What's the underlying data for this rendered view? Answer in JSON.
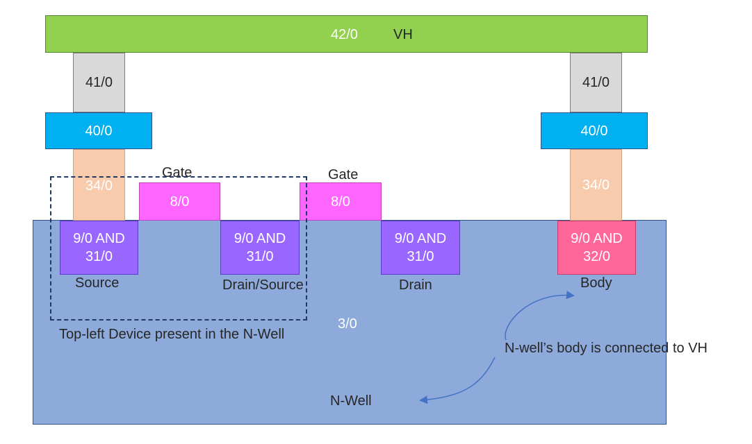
{
  "colors": {
    "nwell": "#8eaadb",
    "metal": "#92d050",
    "via41": "#d9d9d9",
    "via40": "#00b0f0",
    "contact34": "#f8cbad",
    "poly": "#ff66ff",
    "diff_purple": "#9966ff",
    "diff_pink": "#ff6699",
    "dashed_box": "#1f3864",
    "arrow": "#4472c4"
  },
  "layers": {
    "vh_layer": "42/0",
    "vh_name": "VH",
    "via41_left": "41/0",
    "via41_right": "41/0",
    "via40_left": "40/0",
    "via40_right": "40/0",
    "contact_left": "34/0",
    "contact_right": "34/0",
    "poly_left": "8/0",
    "poly_right": "8/0",
    "diff_1": "9/0 AND\n31/0",
    "diff_2": "9/0 AND\n31/0",
    "diff_3": "9/0 AND\n31/0",
    "diff_body": "9/0 AND\n32/0",
    "nwell_layer": "3/0",
    "nwell_name": "N-Well"
  },
  "labels": {
    "gate_left": "Gate",
    "gate_right": "Gate",
    "source": "Source",
    "drain_source": "Drain/Source",
    "drain": "Drain",
    "body": "Body",
    "device_caption": "Top-left Device present in the N-Well",
    "connection_note": "N-well’s body is connected to VH"
  },
  "icons": {
    "connection_arrow": "double-headed-curved-arrow-icon"
  }
}
